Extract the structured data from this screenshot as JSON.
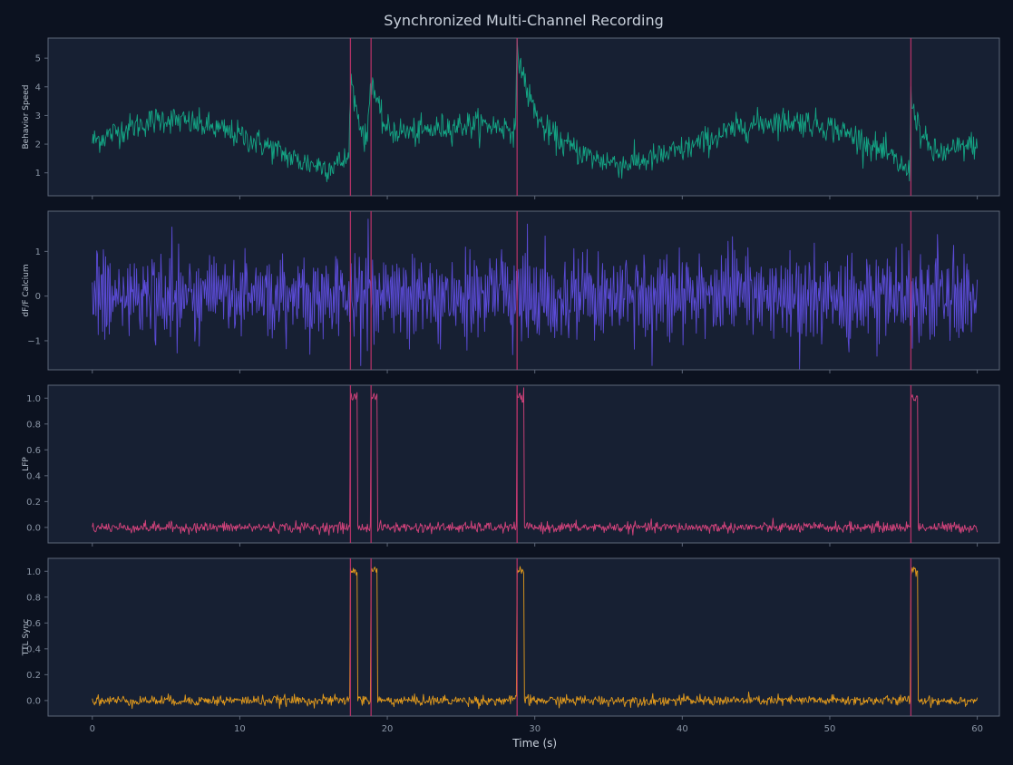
{
  "chart_data": {
    "type": "line",
    "title": "Synchronized Multi-Channel Recording",
    "xlabel": "Time (s)",
    "xlim": [
      -3,
      61.5
    ],
    "x_ticks": [
      0,
      10,
      20,
      30,
      40,
      50,
      60
    ],
    "event_times": [
      17.5,
      18.9,
      28.8,
      55.5
    ],
    "colors": {
      "background": "#0c1220",
      "panel": "#172033",
      "axis": "#5d6779",
      "event_line": "#c0336a"
    },
    "panels": [
      {
        "name": "behavior-speed",
        "ylabel": "Behavior Speed",
        "color": "#14a383",
        "ylim": [
          0.2,
          5.7
        ],
        "y_ticks": [
          1,
          2,
          3,
          4,
          5
        ],
        "x": [
          0,
          2,
          4,
          5,
          6,
          8,
          10,
          12,
          14,
          16,
          17.4,
          17.5,
          18.0,
          18.6,
          18.9,
          19.5,
          20,
          22,
          24,
          26,
          28,
          28.7,
          28.8,
          29.5,
          30.5,
          32,
          34,
          36,
          38,
          40,
          42,
          44,
          46,
          48,
          50,
          52,
          54,
          55.4,
          55.5,
          56.2,
          57,
          58,
          59,
          60
        ],
        "values": [
          2.1,
          2.5,
          2.8,
          2.9,
          2.8,
          2.6,
          2.3,
          1.9,
          1.4,
          1.2,
          1.5,
          4.3,
          3.0,
          2.0,
          4.4,
          3.0,
          2.5,
          2.4,
          2.6,
          2.7,
          2.6,
          2.5,
          5.3,
          3.8,
          2.6,
          2.0,
          1.5,
          1.3,
          1.5,
          1.8,
          2.2,
          2.6,
          2.8,
          2.8,
          2.6,
          2.2,
          1.6,
          1.0,
          3.6,
          2.3,
          1.7,
          1.7,
          1.9,
          2.0
        ],
        "noise": 0.24
      },
      {
        "name": "df-f-calcium",
        "ylabel": "dF/F Calcium",
        "color": "#5b4bd6",
        "ylim": [
          -1.65,
          1.9
        ],
        "y_ticks": [
          -1,
          0,
          1
        ],
        "tick_labels": [
          "−1",
          "0",
          "1"
        ],
        "x": [
          0,
          60
        ],
        "values": [
          0,
          0
        ],
        "oscillation_amplitude": 0.55,
        "noise": 0.32
      },
      {
        "name": "lfp",
        "ylabel": "LFP",
        "color": "#d4437c",
        "ylim": [
          -0.12,
          1.1
        ],
        "y_ticks": [
          0.0,
          0.2,
          0.4,
          0.6,
          0.8,
          1.0
        ],
        "tick_labels": [
          "0.0",
          "0.2",
          "0.4",
          "0.6",
          "0.8",
          "1.0"
        ],
        "baseline": 0.0,
        "pulse_level": 1.01,
        "pulse_width": 0.45,
        "noise": 0.02
      },
      {
        "name": "ttl-sync",
        "ylabel": "TTL Sync",
        "color": "#e39b1c",
        "ylim": [
          -0.12,
          1.1
        ],
        "y_ticks": [
          0.0,
          0.2,
          0.4,
          0.6,
          0.8,
          1.0
        ],
        "tick_labels": [
          "0.0",
          "0.2",
          "0.4",
          "0.6",
          "0.8",
          "1.0"
        ],
        "baseline": 0.0,
        "pulse_level": 1.01,
        "pulse_width": 0.45,
        "noise": 0.02
      }
    ]
  }
}
